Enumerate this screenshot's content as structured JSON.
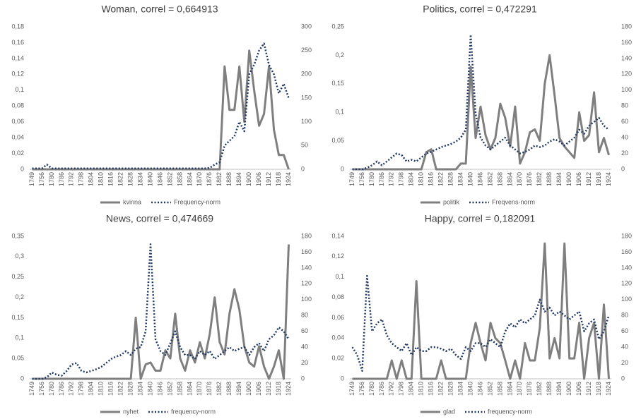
{
  "chart_data": [
    {
      "type": "line",
      "title": "Woman, correl = 0,664913",
      "grid": false,
      "legend": "bottom",
      "categories": [
        "1749",
        null,
        "1756",
        null,
        "1780",
        null,
        "1786",
        null,
        "1792",
        null,
        "1798",
        null,
        "1804",
        null,
        "1810",
        null,
        "1816",
        null,
        "1822",
        null,
        "1828",
        null,
        "1834",
        null,
        "1840",
        null,
        "1846",
        null,
        "1852",
        null,
        "1858",
        null,
        "1864",
        null,
        "1870",
        null,
        "1876",
        null,
        "1882",
        null,
        "1888",
        null,
        "1894",
        null,
        "1900",
        null,
        "1906",
        null,
        "1912",
        null,
        "1918",
        null,
        "1924"
      ],
      "ylim": [
        0,
        0.18
      ],
      "yticks": [
        0,
        {
          "value": 0.02,
          "label": "0,02"
        },
        {
          "value": 0.04,
          "label": "0,04"
        },
        {
          "value": 0.06,
          "label": "0,06"
        },
        {
          "value": 0.08,
          "label": "0,08"
        },
        {
          "value": 0.1,
          "label": "0,1"
        },
        {
          "value": 0.12,
          "label": "0,12"
        },
        {
          "value": 0.14,
          "label": "0,14"
        },
        {
          "value": 0.16,
          "label": "0,16"
        },
        {
          "value": 0.18,
          "label": "0,18"
        }
      ],
      "y2lim": [
        0,
        300
      ],
      "y2ticks": [
        0,
        50,
        100,
        150,
        200,
        250,
        300
      ],
      "series": [
        {
          "name": "kvinna",
          "color": "#7f7f7f",
          "values": [
            0,
            0,
            0,
            0,
            0,
            0,
            0,
            0,
            0,
            0,
            0,
            0,
            0,
            0,
            0,
            0,
            0,
            0,
            0,
            0,
            0,
            0,
            0,
            0,
            0,
            0,
            0,
            0,
            0,
            0,
            0,
            0,
            0,
            0,
            0,
            0,
            0,
            0,
            0,
            0.13,
            0.075,
            0.075,
            0.13,
            0.06,
            0.15,
            0.1,
            0.055,
            0.07,
            0.13,
            0.05,
            0.018,
            0.018,
            0
          ]
        },
        {
          "name": "Frequency-norm",
          "color": "#203864",
          "axis": "y2",
          "values": [
            2,
            2,
            2,
            10,
            2,
            2,
            2,
            2,
            2,
            2,
            2,
            2,
            2,
            2,
            2,
            2,
            2,
            2,
            2,
            2,
            2,
            2,
            2,
            2,
            2,
            2,
            2,
            2,
            2,
            2,
            2,
            2,
            2,
            2,
            2,
            2,
            3,
            10,
            15,
            50,
            60,
            70,
            100,
            80,
            200,
            220,
            250,
            265,
            220,
            200,
            160,
            180,
            150
          ]
        }
      ]
    },
    {
      "type": "line",
      "title": "Politics, correl = 0,472291",
      "grid": false,
      "legend": "bottom",
      "categories": [
        "1749",
        null,
        "1756",
        null,
        "1780",
        null,
        "1786",
        null,
        "1792",
        null,
        "1798",
        null,
        "1804",
        null,
        "1810",
        null,
        "1816",
        null,
        "1822",
        null,
        "1828",
        null,
        "1834",
        null,
        "1840",
        null,
        "1846",
        null,
        "1852",
        null,
        "1858",
        null,
        "1864",
        null,
        "1870",
        null,
        "1876",
        null,
        "1882",
        null,
        "1888",
        null,
        "1894",
        null,
        "1900",
        null,
        "1906",
        null,
        "1912",
        null,
        "1918",
        null,
        "1924"
      ],
      "ylim": [
        0,
        0.25
      ],
      "yticks": [
        0,
        {
          "value": 0.05,
          "label": "0,05"
        },
        {
          "value": 0.1,
          "label": "0,1"
        },
        {
          "value": 0.15,
          "label": "0,15"
        },
        {
          "value": 0.2,
          "label": "0,2"
        },
        {
          "value": 0.25,
          "label": "0,25"
        }
      ],
      "y2lim": [
        0,
        180
      ],
      "y2ticks": [
        0,
        20,
        40,
        60,
        80,
        100,
        120,
        140,
        160,
        180
      ],
      "series": [
        {
          "name": "politik",
          "color": "#7f7f7f",
          "values": [
            0,
            0,
            0,
            0,
            0,
            0,
            0,
            0,
            0,
            0,
            0,
            0,
            0,
            0,
            0,
            0.03,
            0.035,
            0,
            0,
            0,
            0,
            0,
            0.01,
            0.01,
            0.18,
            0.055,
            0.11,
            0.06,
            0.035,
            0.055,
            0.115,
            0.09,
            0.04,
            0.11,
            0.01,
            0.03,
            0.065,
            0.07,
            0.05,
            0.15,
            0.2,
            0.13,
            0.055,
            0.04,
            0.03,
            0.02,
            0.1,
            0.05,
            0.06,
            0.135,
            0.03,
            0.055,
            0.025
          ]
        },
        {
          "name": "Freqvens-norm",
          "color": "#203864",
          "axis": "y2",
          "values": [
            0,
            0,
            0,
            2,
            5,
            10,
            5,
            10,
            15,
            20,
            18,
            10,
            12,
            10,
            15,
            20,
            22,
            25,
            28,
            30,
            32,
            35,
            40,
            50,
            170,
            70,
            40,
            30,
            25,
            30,
            35,
            40,
            30,
            25,
            20,
            22,
            25,
            30,
            28,
            30,
            35,
            38,
            35,
            30,
            35,
            40,
            50,
            45,
            55,
            60,
            65,
            55,
            50
          ]
        }
      ]
    },
    {
      "type": "line",
      "title": "News, correl = 0,474669",
      "grid": false,
      "legend": "bottom",
      "categories": [
        "1749",
        null,
        "1756",
        null,
        "1780",
        null,
        "1786",
        null,
        "1792",
        null,
        "1798",
        null,
        "1804",
        null,
        "1810",
        null,
        "1816",
        null,
        "1822",
        null,
        "1828",
        null,
        "1834",
        null,
        "1840",
        null,
        "1846",
        null,
        "1852",
        null,
        "1858",
        null,
        "1864",
        null,
        "1870",
        null,
        "1876",
        null,
        "1882",
        null,
        "1888",
        null,
        "1894",
        null,
        "1900",
        null,
        "1906",
        null,
        "1912",
        null,
        "1918",
        null,
        "1924"
      ],
      "ylim": [
        0,
        0.35
      ],
      "yticks": [
        0,
        {
          "value": 0.05,
          "label": "0,05"
        },
        {
          "value": 0.1,
          "label": "0,1"
        },
        {
          "value": 0.15,
          "label": "0,15"
        },
        {
          "value": 0.2,
          "label": "0,2"
        },
        {
          "value": 0.25,
          "label": "0,25"
        },
        {
          "value": 0.3,
          "label": "0,3"
        },
        {
          "value": 0.35,
          "label": "0,35"
        }
      ],
      "y2lim": [
        0,
        180
      ],
      "y2ticks": [
        0,
        20,
        40,
        60,
        80,
        100,
        120,
        140,
        160,
        180
      ],
      "series": [
        {
          "name": "nyhet",
          "color": "#7f7f7f",
          "values": [
            0,
            0,
            0,
            0,
            0,
            0,
            0,
            0,
            0,
            0,
            0,
            0,
            0,
            0,
            0,
            0,
            0,
            0,
            0,
            0,
            0,
            0.15,
            0,
            0.035,
            0.04,
            0.02,
            0.02,
            0.07,
            0.05,
            0.16,
            0.05,
            0.02,
            0.07,
            0.04,
            0.09,
            0.05,
            0.11,
            0.2,
            0.09,
            0.06,
            0.16,
            0.22,
            0.17,
            0.08,
            0.04,
            0.03,
            0.08,
            0.03,
            0,
            0.03,
            0.07,
            0,
            0.33
          ]
        },
        {
          "name": "frequency-norm",
          "color": "#203864",
          "axis": "y2",
          "values": [
            0,
            0,
            0,
            2,
            8,
            5,
            4,
            10,
            18,
            20,
            10,
            8,
            10,
            12,
            15,
            20,
            25,
            28,
            30,
            35,
            30,
            38,
            40,
            60,
            170,
            50,
            35,
            30,
            45,
            60,
            40,
            30,
            30,
            25,
            35,
            30,
            35,
            25,
            30,
            35,
            40,
            35,
            38,
            40,
            30,
            40,
            45,
            35,
            50,
            55,
            65,
            60,
            50
          ]
        }
      ]
    },
    {
      "type": "line",
      "title": "Happy, correl = 0,182091",
      "grid": false,
      "legend": "bottom",
      "categories": [
        "1749",
        null,
        "1756",
        null,
        "1780",
        null,
        "1786",
        null,
        "1792",
        null,
        "1798",
        null,
        "1804",
        null,
        "1810",
        null,
        "1816",
        null,
        "1822",
        null,
        "1828",
        null,
        "1834",
        null,
        "1840",
        null,
        "1846",
        null,
        "1852",
        null,
        "1858",
        null,
        "1864",
        null,
        "1870",
        null,
        "1876",
        null,
        "1882",
        null,
        "1888",
        null,
        "1894",
        null,
        "1900",
        null,
        "1906",
        null,
        "1912",
        null,
        "1918",
        null,
        "1924"
      ],
      "ylim": [
        0,
        0.14
      ],
      "yticks": [
        0,
        {
          "value": 0.02,
          "label": "0,02"
        },
        {
          "value": 0.04,
          "label": "0,04"
        },
        {
          "value": 0.06,
          "label": "0,06"
        },
        {
          "value": 0.08,
          "label": "0,08"
        },
        {
          "value": 0.1,
          "label": "0,1"
        },
        {
          "value": 0.12,
          "label": "0,12"
        },
        {
          "value": 0.14,
          "label": "0,14"
        }
      ],
      "y2lim": [
        0,
        180
      ],
      "y2ticks": [
        0,
        20,
        40,
        60,
        80,
        100,
        120,
        140,
        160,
        180
      ],
      "series": [
        {
          "name": "glad",
          "color": "#7f7f7f",
          "values": [
            0,
            0,
            0,
            0,
            0,
            0,
            0,
            0,
            0.018,
            0,
            0.018,
            0,
            0,
            0.096,
            0,
            0,
            0,
            0,
            0.018,
            0,
            0,
            0,
            0,
            0,
            0.035,
            0.055,
            0.035,
            0.018,
            0.055,
            0.04,
            0.035,
            0.018,
            0,
            0.018,
            0,
            0.035,
            0.018,
            0.018,
            0.05,
            0.133,
            0.02,
            0.04,
            0.02,
            0.133,
            0.02,
            0.02,
            0.055,
            0,
            0.04,
            0.055,
            0,
            0.073,
            0
          ]
        },
        {
          "name": "frequency-norm",
          "color": "#203864",
          "axis": "y2",
          "values": [
            40,
            30,
            10,
            130,
            60,
            70,
            75,
            55,
            45,
            40,
            35,
            45,
            30,
            40,
            35,
            35,
            40,
            40,
            38,
            35,
            38,
            30,
            25,
            40,
            35,
            45,
            45,
            40,
            50,
            45,
            40,
            60,
            70,
            65,
            75,
            70,
            75,
            80,
            100,
            85,
            90,
            80,
            85,
            80,
            75,
            80,
            85,
            60,
            70,
            75,
            50,
            60,
            80
          ]
        }
      ]
    }
  ]
}
